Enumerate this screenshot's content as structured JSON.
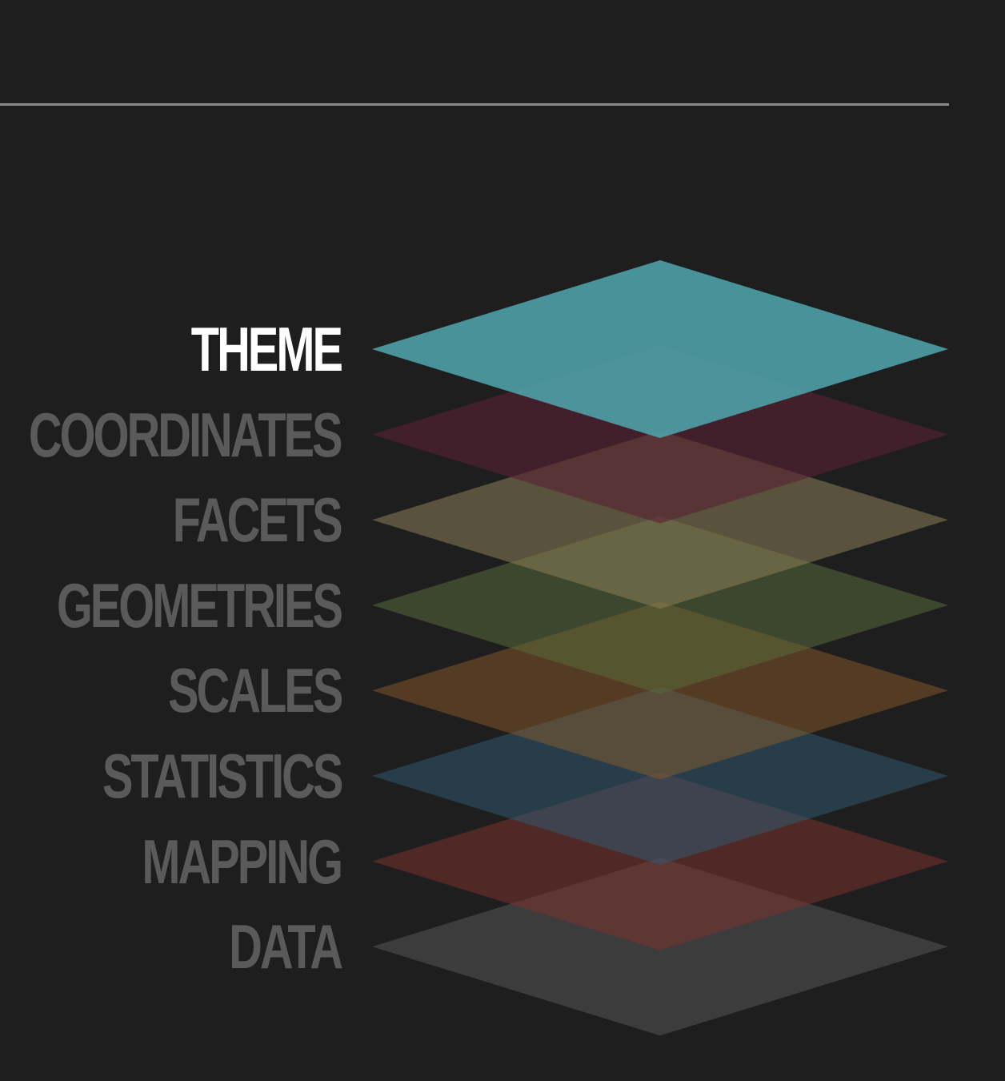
{
  "layers": [
    {
      "label": "THEME",
      "color": "#4fa3ab",
      "opacity": 0.88,
      "active": true
    },
    {
      "label": "COORDINATES",
      "color": "#5a2233",
      "opacity": 0.6,
      "active": false
    },
    {
      "label": "FACETS",
      "color": "#8a7e55",
      "opacity": 0.55,
      "active": false
    },
    {
      "label": "GEOMETRIES",
      "color": "#586a3a",
      "opacity": 0.55,
      "active": false
    },
    {
      "label": "SCALES",
      "color": "#8a5a2a",
      "opacity": 0.5,
      "active": false
    },
    {
      "label": "STATISTICS",
      "color": "#2f5a70",
      "opacity": 0.55,
      "active": false
    },
    {
      "label": "MAPPING",
      "color": "#7a3330",
      "opacity": 0.55,
      "active": false
    },
    {
      "label": "DATA",
      "color": "#555555",
      "opacity": 0.55,
      "active": false
    }
  ],
  "colors": {
    "background": "#1e1e1e",
    "rule": "#8a8a8a",
    "label_active": "#ffffff",
    "label_inactive": "#5a5a5a"
  }
}
